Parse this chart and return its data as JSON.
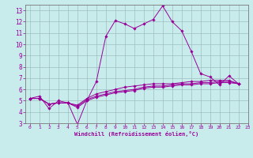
{
  "xlabel": "Windchill (Refroidissement éolien,°C)",
  "background_color": "#c8ecec",
  "grid_color": "#b0d0d0",
  "line_color": "#990099",
  "xlim": [
    -0.5,
    23
  ],
  "ylim": [
    3,
    13.5
  ],
  "xticks": [
    0,
    1,
    2,
    3,
    4,
    5,
    6,
    7,
    8,
    9,
    10,
    11,
    12,
    13,
    14,
    15,
    16,
    17,
    18,
    19,
    20,
    21,
    22,
    23
  ],
  "yticks": [
    3,
    4,
    5,
    6,
    7,
    8,
    9,
    10,
    11,
    12,
    13
  ],
  "series": [
    [
      5.2,
      5.4,
      4.3,
      5.0,
      4.8,
      2.9,
      5.0,
      6.7,
      10.7,
      12.1,
      11.8,
      11.4,
      11.8,
      12.2,
      13.4,
      12.0,
      11.2,
      9.4,
      7.4,
      7.1,
      6.4,
      7.2,
      6.5
    ],
    [
      5.2,
      5.2,
      4.7,
      4.8,
      4.8,
      4.6,
      5.2,
      5.6,
      5.8,
      6.0,
      6.2,
      6.3,
      6.4,
      6.5,
      6.5,
      6.5,
      6.6,
      6.7,
      6.7,
      6.8,
      6.8,
      6.8,
      6.5
    ],
    [
      5.2,
      5.2,
      4.7,
      4.8,
      4.8,
      4.5,
      5.1,
      5.4,
      5.6,
      5.8,
      5.9,
      6.0,
      6.2,
      6.3,
      6.3,
      6.4,
      6.5,
      6.5,
      6.6,
      6.6,
      6.7,
      6.7,
      6.5
    ],
    [
      5.2,
      5.2,
      4.7,
      4.8,
      4.8,
      4.4,
      5.0,
      5.3,
      5.5,
      5.7,
      5.8,
      5.9,
      6.1,
      6.2,
      6.2,
      6.3,
      6.4,
      6.4,
      6.5,
      6.5,
      6.6,
      6.6,
      6.5
    ]
  ]
}
